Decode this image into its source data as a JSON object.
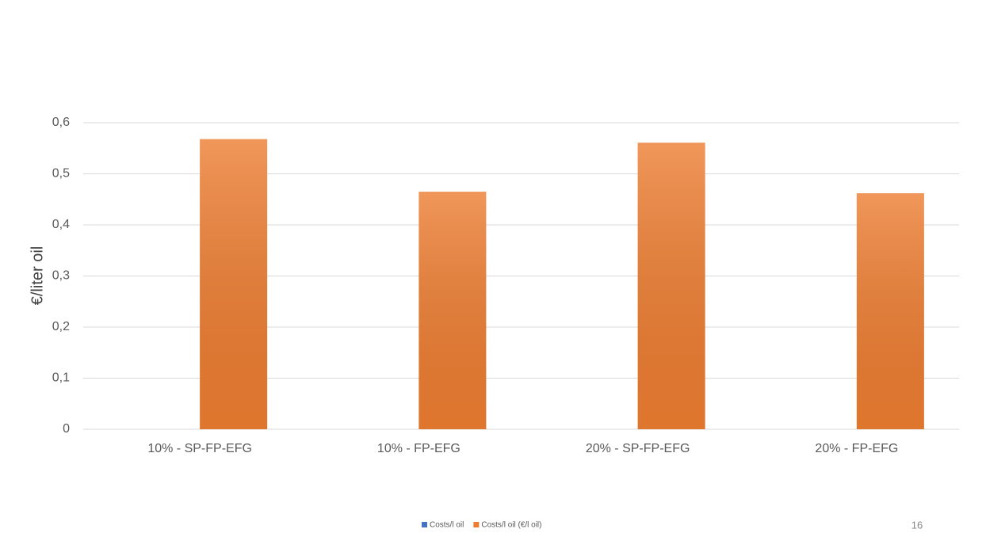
{
  "chart_data": {
    "type": "bar",
    "y_label": "€/liter oil",
    "categories": [
      "10% - SP-FP-EFG",
      "10% - FP-EFG",
      "20% - SP-FP-EFG",
      "20% - FP-EFG"
    ],
    "series": [
      {
        "name": "Costs/l oil",
        "color": "#4472c4",
        "values": [
          0,
          0,
          0,
          0
        ]
      },
      {
        "name": "Costs/l oil (€/l oil)",
        "color": "#ed7d31",
        "values": [
          0.568,
          0.465,
          0.561,
          0.462
        ]
      }
    ],
    "ylim": [
      0,
      0.6
    ],
    "yticks": [
      0,
      {
        "value": 0.1,
        "label": "0,1"
      },
      {
        "value": 0.2,
        "label": "0,2"
      },
      {
        "value": 0.3,
        "label": "0,3"
      },
      {
        "value": 0.4,
        "label": "0,4"
      },
      {
        "value": 0.5,
        "label": "0,5"
      },
      {
        "value": 0.6,
        "label": "0,6"
      }
    ],
    "grid": true,
    "legend": "bottom"
  },
  "slide": {
    "page_number": "16"
  }
}
